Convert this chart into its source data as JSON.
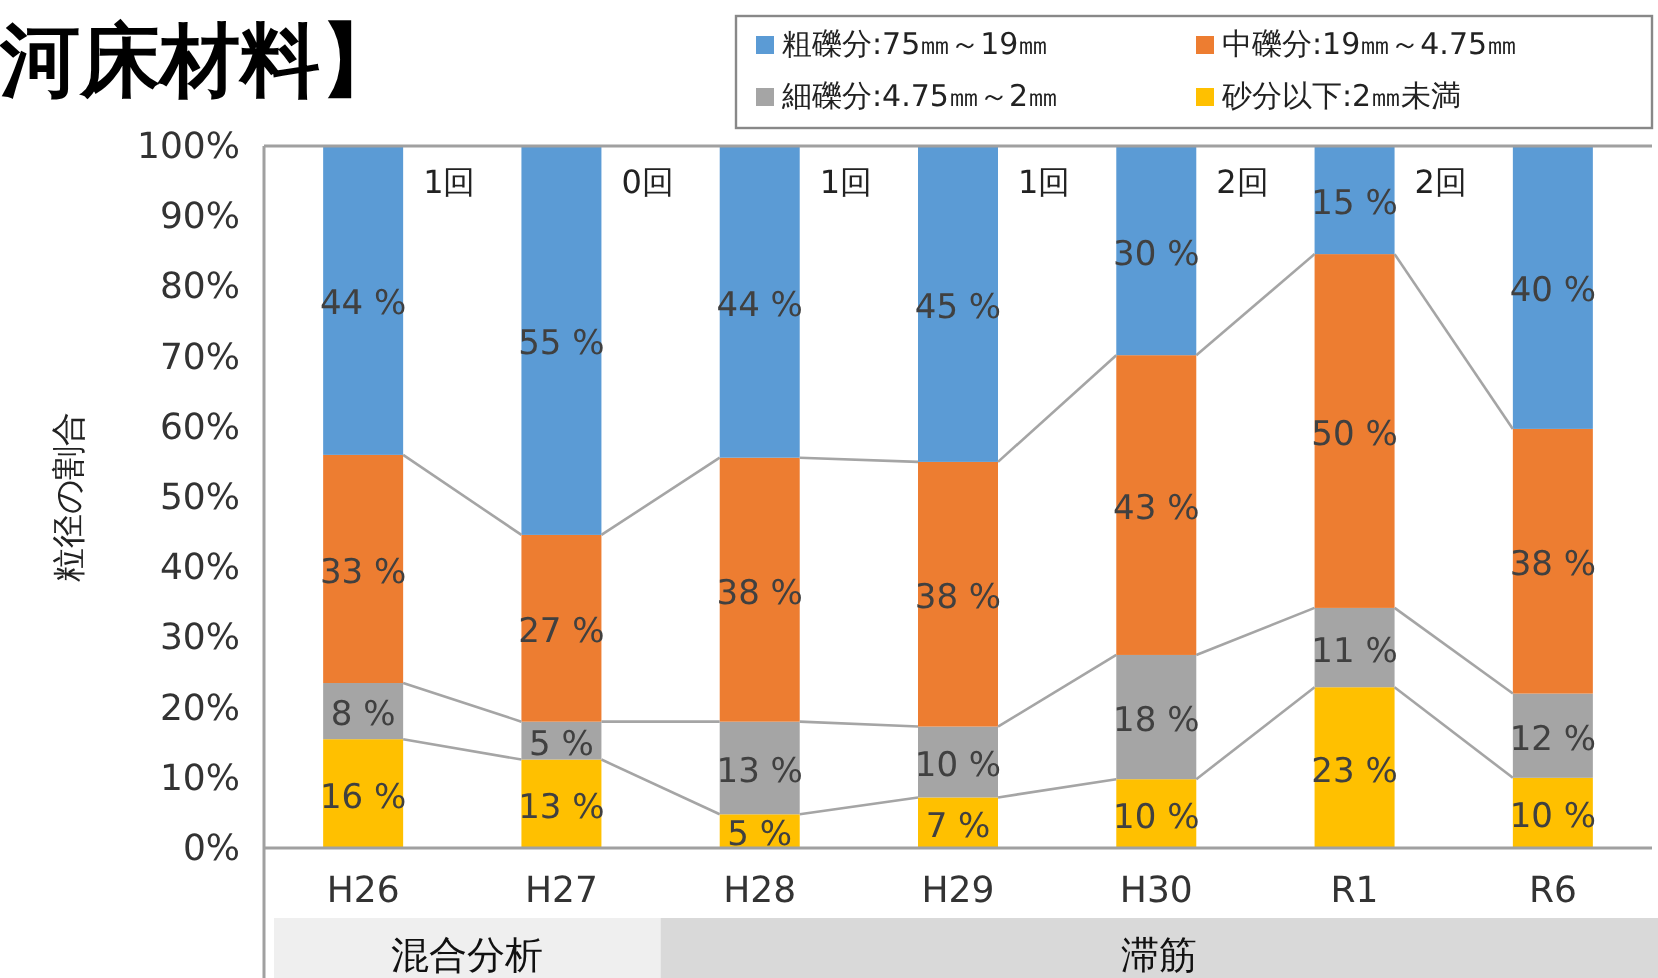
{
  "chart_data": {
    "type": "bar",
    "stacked": true,
    "title": "河床材料】",
    "ylabel": "粒径の割合",
    "categories": [
      "H26",
      "H27",
      "H28",
      "H29",
      "H30",
      "R1",
      "R6"
    ],
    "series": [
      {
        "name": "砂分以下:2㎜未満",
        "color": "#ffc000",
        "values": [
          15.5,
          12.6,
          4.8,
          7.2,
          9.8,
          22.9,
          10.0
        ],
        "value_labels": [
          "16 %",
          "13 %",
          "5 %",
          "7 %",
          "10 %",
          "23 %",
          "10 %"
        ]
      },
      {
        "name": "細礫分:4.75㎜～2㎜",
        "color": "#a5a5a5",
        "values": [
          8.0,
          5.4,
          13.2,
          10.1,
          17.7,
          11.3,
          12.0
        ],
        "value_labels": [
          "8 %",
          "5 %",
          "13 %",
          "10 %",
          "18 %",
          "11 %",
          "12 %"
        ]
      },
      {
        "name": "中礫分:19㎜～4.75㎜",
        "color": "#ed7d31",
        "values": [
          32.5,
          26.6,
          37.6,
          37.7,
          42.7,
          50.4,
          37.7
        ],
        "value_labels": [
          "33 %",
          "27 %",
          "38 %",
          "38 %",
          "43 %",
          "50 %",
          "38 %"
        ]
      },
      {
        "name": "粗礫分:75㎜～19㎜",
        "color": "#5b9bd5",
        "values": [
          44.0,
          55.4,
          44.4,
          45.0,
          29.8,
          15.4,
          40.3
        ],
        "value_labels": [
          "44 %",
          "55 %",
          "44 %",
          "45 %",
          "30 %",
          "15 %",
          "40 %"
        ]
      }
    ],
    "ylim": [
      0,
      100
    ],
    "yticks": [
      {
        "value": 0,
        "label": "0%"
      },
      {
        "value": 10,
        "label": "10%"
      },
      {
        "value": 20,
        "label": "20%"
      },
      {
        "value": 30,
        "label": "30%"
      },
      {
        "value": 40,
        "label": "40%"
      },
      {
        "value": 50,
        "label": "50%"
      },
      {
        "value": 60,
        "label": "60%"
      },
      {
        "value": 70,
        "label": "70%"
      },
      {
        "value": 80,
        "label": "80%"
      },
      {
        "value": 90,
        "label": "90%"
      },
      {
        "value": 100,
        "label": "100%"
      }
    ],
    "grid": false,
    "legend": "top right",
    "annotations": [
      "1回",
      "0回",
      "1回",
      "1回",
      "2回",
      "2回",
      "混合分析",
      "滞筋"
    ]
  }
}
